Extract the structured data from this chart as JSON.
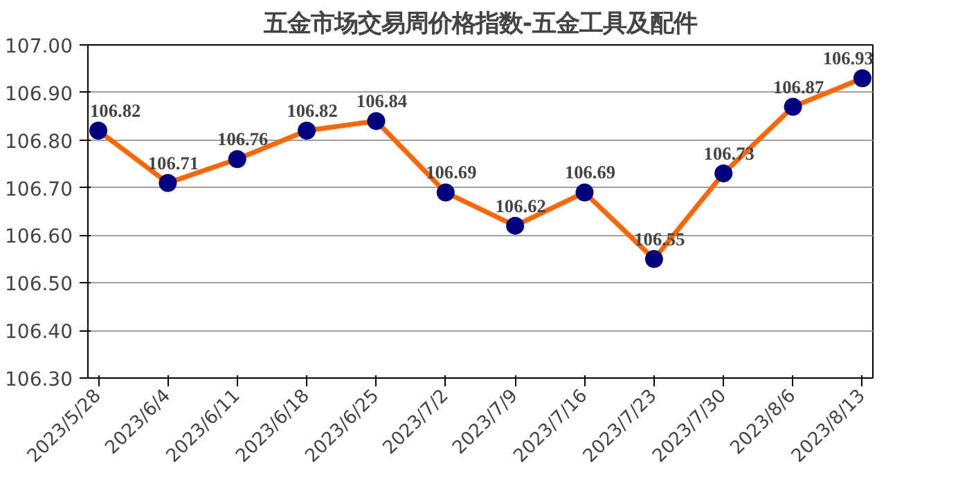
{
  "chart_data": {
    "type": "line",
    "title": "五金市场交易周价格指数-五金工具及配件",
    "categories": [
      "2023/5/28",
      "2023/6/4",
      "2023/6/11",
      "2023/6/18",
      "2023/6/25",
      "2023/7/2",
      "2023/7/9",
      "2023/7/16",
      "2023/7/23",
      "2023/7/30",
      "2023/8/6",
      "2023/8/13"
    ],
    "series": [
      {
        "color": "#ff6600",
        "colors": [
          "#000080",
          "#000080",
          "#000080",
          "#000080",
          "#000080",
          "#000080",
          "#000080",
          "#000080",
          "#000080",
          "#000080",
          "#000080",
          "#000080"
        ],
        "values": [
          106.82,
          106.71,
          106.76,
          106.82,
          106.84,
          106.69,
          106.62,
          106.69,
          106.55,
          106.73,
          106.87,
          106.93
        ]
      }
    ],
    "ylim": [
      106.3,
      107.0
    ],
    "yticks": [
      {
        "value": 106.3,
        "label": "106.30"
      },
      {
        "value": 106.4,
        "label": "106.40"
      },
      {
        "value": 106.5,
        "label": "106.50"
      },
      {
        "value": 106.6,
        "label": "106.60"
      },
      {
        "value": 106.7,
        "label": "106.70"
      },
      {
        "value": 106.8,
        "label": "106.80"
      },
      {
        "value": 106.9,
        "label": "106.90"
      },
      {
        "value": 107.0,
        "label": "107.00"
      }
    ],
    "grid": "y",
    "marker": "circle",
    "line_style": "solid",
    "data_labels": true
  }
}
